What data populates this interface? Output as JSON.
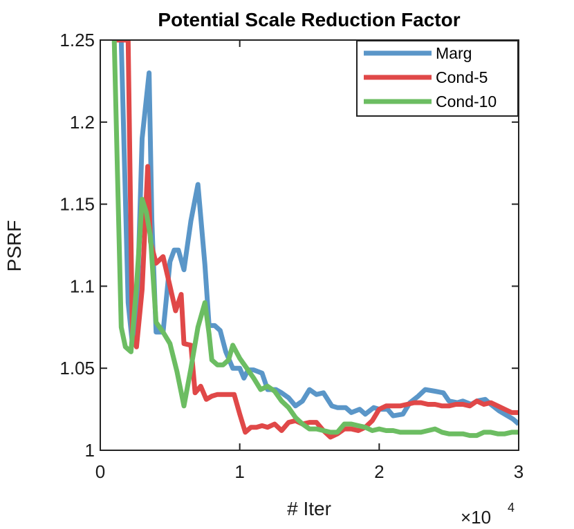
{
  "chart_data": {
    "type": "line",
    "title": "Potential Scale Reduction Factor",
    "xlabel": "# Iter",
    "ylabel": "PSRF",
    "xlim": [
      0,
      30000
    ],
    "ylim": [
      1,
      1.25
    ],
    "x_ticks": [
      0,
      10000,
      20000,
      30000
    ],
    "x_tick_labels": [
      "0",
      "1",
      "2",
      "3"
    ],
    "y_ticks": [
      1,
      1.05,
      1.1,
      1.15,
      1.2,
      1.25
    ],
    "y_tick_labels": [
      "1",
      "1.05",
      "1.1",
      "1.15",
      "1.2",
      "1.25"
    ],
    "x_multiplier": {
      "base": "×10",
      "exponent": "4"
    },
    "legend_position": "top-right",
    "series": [
      {
        "name": "Marg",
        "color": "#5a96c8",
        "x": [
          1000,
          1500,
          2000,
          2300,
          2600,
          3000,
          3500,
          3700,
          4000,
          4500,
          5000,
          5300,
          5600,
          6000,
          6500,
          7000,
          7500,
          7800,
          8200,
          8600,
          9000,
          9500,
          10000,
          10300,
          10600,
          11000,
          11600,
          12000,
          12600,
          13000,
          13500,
          14000,
          14500,
          15000,
          15500,
          16000,
          16600,
          17000,
          17600,
          18000,
          18600,
          19000,
          19600,
          20000,
          20600,
          21000,
          21700,
          22200,
          22800,
          23300,
          24000,
          24600,
          25000,
          25600,
          26000,
          26600,
          27000,
          27600,
          28000,
          28600,
          29000,
          29600,
          30000
        ],
        "y": [
          1.25,
          1.25,
          1.09,
          1.065,
          1.075,
          1.19,
          1.23,
          1.14,
          1.072,
          1.072,
          1.115,
          1.122,
          1.122,
          1.11,
          1.14,
          1.162,
          1.113,
          1.076,
          1.076,
          1.073,
          1.06,
          1.05,
          1.05,
          1.044,
          1.049,
          1.049,
          1.047,
          1.037,
          1.037,
          1.035,
          1.032,
          1.027,
          1.03,
          1.037,
          1.034,
          1.035,
          1.027,
          1.026,
          1.026,
          1.023,
          1.025,
          1.022,
          1.026,
          1.025,
          1.025,
          1.021,
          1.022,
          1.029,
          1.033,
          1.037,
          1.036,
          1.035,
          1.03,
          1.029,
          1.03,
          1.028,
          1.03,
          1.031,
          1.028,
          1.024,
          1.022,
          1.019,
          1.016
        ]
      },
      {
        "name": "Cond-5",
        "color": "#e04848",
        "x": [
          1000,
          1600,
          2000,
          2300,
          2600,
          3000,
          3400,
          3600,
          4000,
          4500,
          5000,
          5400,
          5800,
          6000,
          6500,
          6800,
          7200,
          7600,
          8000,
          8400,
          8800,
          9200,
          9600,
          10000,
          10400,
          10800,
          11200,
          11600,
          12000,
          12500,
          13000,
          13500,
          14000,
          14500,
          15000,
          15500,
          16000,
          16500,
          17000,
          17500,
          18000,
          18500,
          19000,
          19500,
          20000,
          20500,
          21000,
          21500,
          22000,
          22500,
          23000,
          23500,
          24000,
          24500,
          25000,
          25500,
          26000,
          26500,
          27000,
          27500,
          28000,
          28500,
          29000,
          29500,
          30000
        ],
        "y": [
          1.25,
          1.25,
          1.25,
          1.07,
          1.063,
          1.098,
          1.173,
          1.127,
          1.114,
          1.118,
          1.1,
          1.085,
          1.095,
          1.065,
          1.064,
          1.035,
          1.039,
          1.031,
          1.033,
          1.034,
          1.034,
          1.034,
          1.034,
          1.022,
          1.011,
          1.014,
          1.014,
          1.015,
          1.014,
          1.016,
          1.012,
          1.017,
          1.018,
          1.016,
          1.017,
          1.017,
          1.012,
          1.008,
          1.01,
          1.013,
          1.013,
          1.012,
          1.014,
          1.018,
          1.025,
          1.027,
          1.027,
          1.027,
          1.028,
          1.029,
          1.029,
          1.028,
          1.028,
          1.027,
          1.027,
          1.028,
          1.028,
          1.027,
          1.03,
          1.028,
          1.029,
          1.027,
          1.025,
          1.023,
          1.023
        ]
      },
      {
        "name": "Cond-10",
        "color": "#6cbd62",
        "x": [
          1000,
          1500,
          1800,
          2200,
          2600,
          3000,
          3300,
          3600,
          4000,
          4500,
          5000,
          5500,
          6000,
          6500,
          7000,
          7500,
          7800,
          8000,
          8400,
          8800,
          9200,
          9500,
          10000,
          10500,
          11000,
          11500,
          12000,
          12500,
          13000,
          13500,
          14000,
          14500,
          15000,
          15500,
          16000,
          16500,
          17000,
          17500,
          18000,
          18500,
          19000,
          19500,
          20000,
          20500,
          21000,
          21500,
          22000,
          22500,
          23000,
          23500,
          24000,
          24500,
          25000,
          25500,
          26000,
          26500,
          27000,
          27500,
          28000,
          28500,
          29000,
          29500,
          30000
        ],
        "y": [
          1.25,
          1.075,
          1.063,
          1.06,
          1.1,
          1.153,
          1.145,
          1.13,
          1.078,
          1.072,
          1.065,
          1.048,
          1.027,
          1.05,
          1.075,
          1.09,
          1.071,
          1.055,
          1.052,
          1.052,
          1.055,
          1.064,
          1.056,
          1.05,
          1.044,
          1.037,
          1.039,
          1.036,
          1.03,
          1.026,
          1.02,
          1.016,
          1.013,
          1.013,
          1.012,
          1.011,
          1.011,
          1.016,
          1.016,
          1.015,
          1.014,
          1.012,
          1.013,
          1.012,
          1.012,
          1.011,
          1.011,
          1.011,
          1.011,
          1.012,
          1.013,
          1.011,
          1.01,
          1.01,
          1.01,
          1.009,
          1.009,
          1.011,
          1.011,
          1.01,
          1.01,
          1.011,
          1.011
        ]
      }
    ]
  }
}
